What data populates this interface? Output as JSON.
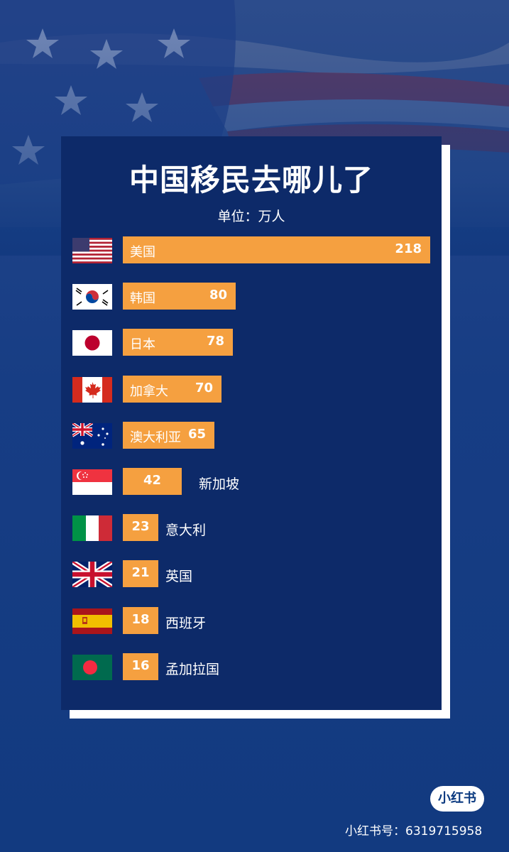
{
  "title": "中国移民去哪儿了",
  "subtitle": "单位：万人",
  "chart_data": {
    "type": "bar",
    "orientation": "horizontal",
    "title": "中国移民去哪儿了",
    "unit": "单位：万人",
    "categories": [
      "美国",
      "韩国",
      "日本",
      "加拿大",
      "澳大利亚",
      "新加坡",
      "意大利",
      "英国",
      "西班牙",
      "孟加拉国"
    ],
    "values": [
      218,
      80,
      78,
      70,
      65,
      42,
      23,
      21,
      18,
      16
    ],
    "flags": [
      "us-flag-icon",
      "kr-flag-icon",
      "jp-flag-icon",
      "ca-flag-icon",
      "au-flag-icon",
      "sg-flag-icon",
      "it-flag-icon",
      "gb-flag-icon",
      "es-flag-icon",
      "bd-flag-icon"
    ],
    "bar_color": "#f5a040"
  },
  "colors": {
    "panel": "#0d2a69",
    "bar": "#f5a040",
    "background": "#173d84"
  },
  "watermark": {
    "logo": "小红书",
    "text": "小红书号：6319715958"
  }
}
